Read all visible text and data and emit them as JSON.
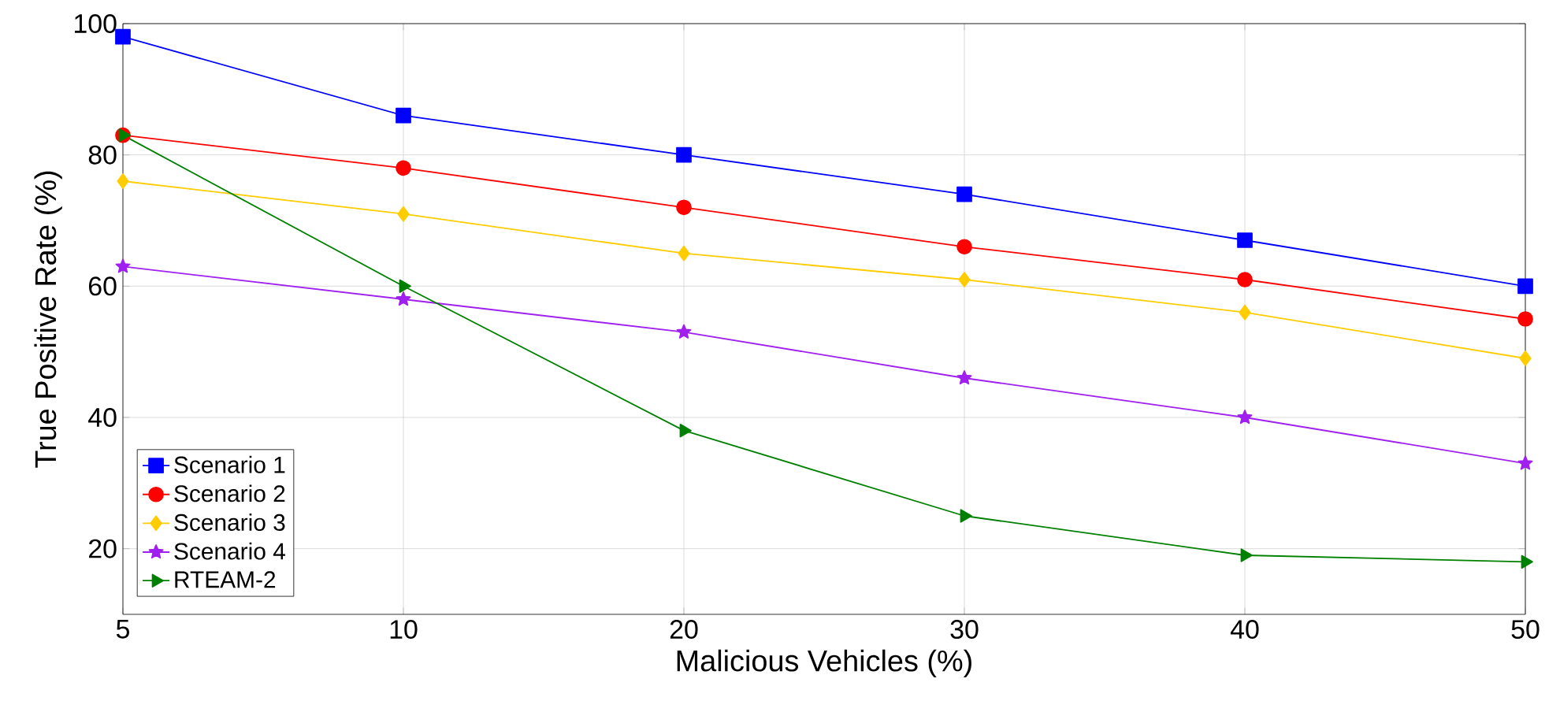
{
  "chart_data": {
    "type": "line",
    "xlabel": "Malicious Vehicles (%)",
    "ylabel": "True Positive Rate (%)",
    "categories": [
      "5",
      "10",
      "20",
      "30",
      "40",
      "50"
    ],
    "ylim": [
      10,
      100
    ],
    "yticks": [
      20,
      40,
      60,
      80,
      100
    ],
    "grid": true,
    "legend": "bottom left",
    "series": [
      {
        "name": "Scenario 1",
        "color": "#0000ff",
        "marker": "square",
        "values": [
          98,
          86,
          80,
          74,
          67,
          60
        ]
      },
      {
        "name": "Scenario 2",
        "color": "#ff0000",
        "marker": "circle",
        "values": [
          83,
          78,
          72,
          66,
          61,
          55
        ]
      },
      {
        "name": "Scenario 3",
        "color": "#ffcc00",
        "marker": "diamond",
        "values": [
          76,
          71,
          65,
          61,
          56,
          49
        ]
      },
      {
        "name": "Scenario 4",
        "color": "#a020f0",
        "marker": "star",
        "values": [
          63,
          58,
          53,
          46,
          40,
          33
        ]
      },
      {
        "name": "RTEAM-2",
        "color": "#008000",
        "marker": "triangle",
        "values": [
          83,
          60,
          38,
          25,
          19,
          18
        ]
      }
    ]
  }
}
